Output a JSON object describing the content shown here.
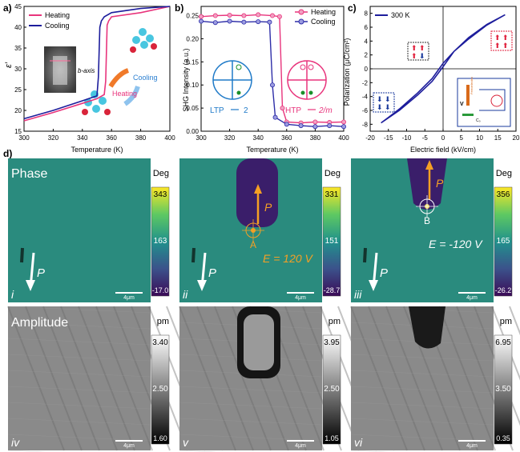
{
  "panel_a": {
    "label": "a)",
    "ylabel": "ε′",
    "xlabel": "Temperature (K)",
    "legend": [
      "Heating",
      "Cooling"
    ],
    "axis_note": "b-axis",
    "anno_heating": "Heating",
    "anno_cooling": "Cooling",
    "xticks": [
      "300",
      "320",
      "340",
      "360",
      "380",
      "400"
    ],
    "yticks": [
      "15",
      "20",
      "25",
      "30",
      "35",
      "40",
      "45"
    ],
    "colors": {
      "heating": "#e8347c",
      "cooling": "#1d1d9c"
    }
  },
  "panel_b": {
    "label": "b)",
    "ylabel": "SHG Intensity (a.u.)",
    "xlabel": "Temperature (K)",
    "legend": [
      "Heating",
      "Cooling"
    ],
    "ltp_label": "LTP",
    "ltp_value": "2",
    "htp_label": "HTP",
    "htp_value": "2/m",
    "xticks": [
      "300",
      "320",
      "340",
      "360",
      "380",
      "400"
    ],
    "yticks": [
      "0.00",
      "0.05",
      "0.10",
      "0.15",
      "0.20",
      "0.25"
    ]
  },
  "panel_c": {
    "label": "c)",
    "ylabel": "Polarization (μC/cm²)",
    "xlabel": "Electric field (kV/cm)",
    "legend": "300 K",
    "xticks": [
      "-20",
      "-15",
      "-10",
      "-5",
      "0",
      "5",
      "10",
      "15",
      "20"
    ],
    "yticks": [
      "-8",
      "-6",
      "-4",
      "-2",
      "0",
      "2",
      "4",
      "6",
      "8"
    ],
    "circuit_v": "V",
    "circuit_cap": "Ferroelectric",
    "circuit_c0": "C₀"
  },
  "panel_d": {
    "label": "d)",
    "phase_title": "Phase",
    "amplitude_title": "Amplitude",
    "scale_bar": "4μm",
    "p_symbol": "P",
    "phase_images": [
      {
        "roman": "i",
        "unit": "Deg",
        "max": "343",
        "mid": "163",
        "min": "-17.0"
      },
      {
        "roman": "ii",
        "unit": "Deg",
        "max": "331",
        "mid": "151",
        "min": "-28.7",
        "point": "A",
        "field": "E = 120 V"
      },
      {
        "roman": "iii",
        "unit": "Deg",
        "max": "356",
        "mid": "165",
        "min": "-26.2",
        "point": "B",
        "field": "E = -120 V"
      }
    ],
    "amplitude_images": [
      {
        "roman": "iv",
        "unit": "pm",
        "max": "3.40",
        "mid": "2.50",
        "min": "1.60"
      },
      {
        "roman": "v",
        "unit": "pm",
        "max": "3.95",
        "mid": "2.50",
        "min": "1.05"
      },
      {
        "roman": "vi",
        "unit": "pm",
        "max": "6.95",
        "mid": "3.50",
        "min": "0.35"
      }
    ]
  },
  "chart_data": [
    {
      "type": "line",
      "panel": "a",
      "xlabel": "Temperature (K)",
      "ylabel": "ε′",
      "xlim": [
        300,
        400
      ],
      "ylim": [
        15,
        45
      ],
      "series": [
        {
          "name": "Heating",
          "x": [
            300,
            320,
            340,
            350,
            355,
            356,
            357,
            358,
            360,
            380,
            400
          ],
          "y": [
            17.5,
            19.5,
            21.7,
            22.8,
            23.8,
            27,
            40.5,
            41.5,
            42.5,
            43.5,
            45
          ]
        },
        {
          "name": "Cooling",
          "x": [
            300,
            320,
            340,
            350,
            351,
            352,
            353,
            355,
            360,
            380,
            400
          ],
          "y": [
            18,
            20,
            22.3,
            23.5,
            28,
            40,
            41.5,
            42.5,
            43.5,
            44.5,
            45
          ]
        }
      ]
    },
    {
      "type": "scatter",
      "panel": "b",
      "xlabel": "Temperature (K)",
      "ylabel": "SHG Intensity (a.u.)",
      "xlim": [
        300,
        400
      ],
      "ylim": [
        0,
        0.27
      ],
      "series": [
        {
          "name": "Heating",
          "x": [
            300,
            310,
            320,
            330,
            340,
            350,
            355,
            357,
            360,
            370,
            380,
            390,
            400
          ],
          "y": [
            0.248,
            0.25,
            0.251,
            0.25,
            0.252,
            0.25,
            0.248,
            0.05,
            0.02,
            0.018,
            0.02,
            0.019,
            0.02
          ]
        },
        {
          "name": "Cooling",
          "x": [
            300,
            310,
            320,
            330,
            340,
            348,
            350,
            352,
            360,
            370,
            380,
            390,
            400
          ],
          "y": [
            0.238,
            0.235,
            0.238,
            0.236,
            0.237,
            0.236,
            0.1,
            0.03,
            0.015,
            0.012,
            0.01,
            0.012,
            0.01
          ]
        }
      ]
    },
    {
      "type": "line",
      "panel": "c",
      "xlabel": "Electric field (kV/cm)",
      "ylabel": "Polarization (μC/cm²)",
      "xlim": [
        -20,
        20
      ],
      "ylim": [
        -9,
        9
      ],
      "series": [
        {
          "name": "300 K",
          "x": [
            -17,
            -12,
            -7,
            -3,
            0,
            3,
            7,
            12,
            15,
            17,
            12,
            7,
            3,
            0,
            -3,
            -7,
            -12,
            -15,
            -17
          ],
          "y": [
            -7.8,
            -6,
            -3.8,
            -1.8,
            0.3,
            2.5,
            4.3,
            6.3,
            7.2,
            7.8,
            6.4,
            4.5,
            2.5,
            0.8,
            -1.4,
            -3.5,
            -5.8,
            -7.0,
            -7.8
          ]
        }
      ]
    }
  ]
}
